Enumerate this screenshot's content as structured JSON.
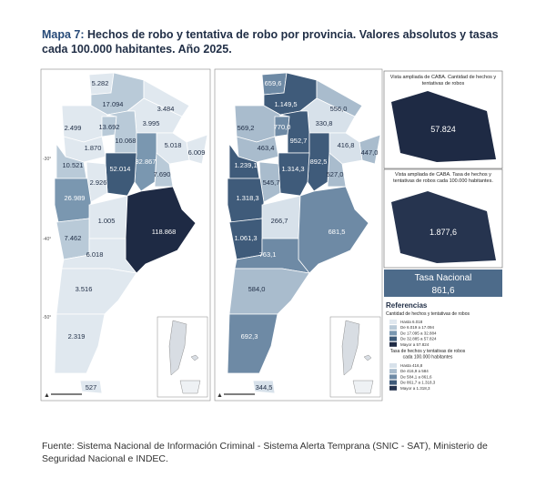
{
  "header": {
    "label": "Mapa 7:",
    "title": "Hechos de robo y tentativa de robo por provincia. Valores absolutos y tasas cada 100.000 habitantes. Año 2025."
  },
  "left_map": {
    "labels": [
      "5.282",
      "17.094",
      "3.484",
      "3.995",
      "2.499",
      "13.692",
      "10.068",
      "6.009",
      "1.870",
      "5.018",
      "32.867",
      "52.014",
      "7.690",
      "10.521",
      "2.926",
      "26.989",
      "1.005",
      "118.868",
      "7.462",
      "6.018",
      "3.516",
      "2.319",
      "527"
    ],
    "fills": [
      "#e0e8ef",
      "#b9cad8",
      "#e0e8ef",
      "#e0e8ef",
      "#e0e8ef",
      "#b9cad8",
      "#b9cad8",
      "#e0e8ef",
      "#e0e8ef",
      "#e0e8ef",
      "#7a97b0",
      "#3e5a78",
      "#b9cad8",
      "#b9cad8",
      "#e0e8ef",
      "#7a97b0",
      "#e0e8ef",
      "#1e2a44",
      "#b9cad8",
      "#e0e8ef",
      "#e0e8ef",
      "#e0e8ef",
      "#e0e8ef"
    ],
    "coords": [
      "-30°",
      "-40°",
      "-50°"
    ]
  },
  "right_map": {
    "labels": [
      "659,6",
      "1.149,5",
      "556,0",
      "330,8",
      "569,2",
      "770,0",
      "952,7",
      "447,0",
      "463,4",
      "416,8",
      "892,5",
      "1.314,3",
      "527,0",
      "1.239,1",
      "545,7",
      "1.318,3",
      "266,7",
      "681,5",
      "1.061,3",
      "763,1",
      "584,0",
      "692,3",
      "344,5"
    ],
    "fills": [
      "#6e8aa5",
      "#3f5b7a",
      "#a9bccd",
      "#d7e1ea",
      "#a9bccd",
      "#6e8aa5",
      "#3f5b7a",
      "#a9bccd",
      "#a9bccd",
      "#d7e1ea",
      "#3f5b7a",
      "#3f5b7a",
      "#a9bccd",
      "#3f5b7a",
      "#a9bccd",
      "#3f5b7a",
      "#d7e1ea",
      "#6e8aa5",
      "#3f5b7a",
      "#6e8aa5",
      "#a9bccd",
      "#6e8aa5",
      "#d7e1ea"
    ]
  },
  "caba_count": {
    "title": "Vista ampliada de CABA. Cantidad de hechos y tentativas de robos",
    "value": "57.824"
  },
  "caba_rate": {
    "title": "Vista ampliada de CABA. Tasa de hechos y tentativas de robos cada 100.000 habitantes.",
    "value": "1.877,6"
  },
  "national_rate": {
    "label": "Tasa Nacional",
    "value": "861,6"
  },
  "legend": {
    "title": "Referencias",
    "count": {
      "title": "Cantidad de hechos y tentativas de robos",
      "items": [
        "Hasta 6.018",
        "De 6.019 a 17.094",
        "De 17.095 a 32.884",
        "De 32.885 a 57.824",
        "Mayor a 57.824"
      ],
      "colors": [
        "#e0e8ef",
        "#b9cad8",
        "#7a97b0",
        "#3e5a78",
        "#1e2a44"
      ]
    },
    "rate": {
      "title": "Tasa de hechos y tentativas de robos cada 100.000 habitantes",
      "items": [
        "Hasta 416,8",
        "De 416,9 a 584",
        "De 584,1 a 861,6",
        "De 861,7 a 1.318,3",
        "Mayor a 1.318,3"
      ],
      "colors": [
        "#d7e1ea",
        "#a9bccd",
        "#6e8aa5",
        "#3f5b7a",
        "#26344f"
      ]
    }
  },
  "source": "Fuente: Sistema Nacional de Información Criminal - Sistema Alerta Temprana (SNIC - SAT), Ministerio de Seguridad Nacional e INDEC."
}
